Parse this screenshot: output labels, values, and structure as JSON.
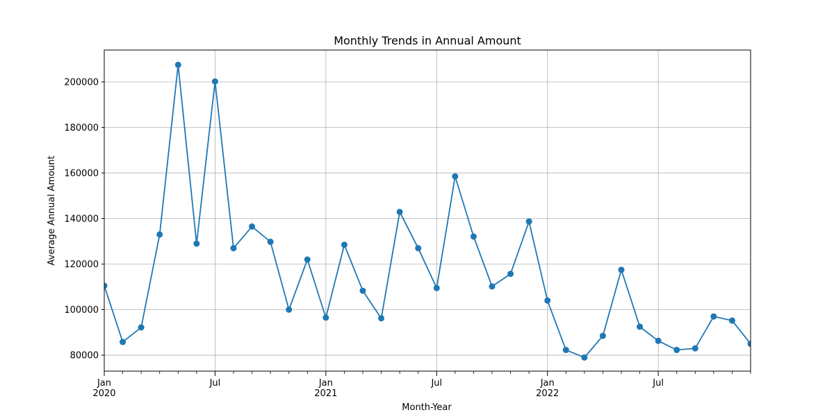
{
  "chart_data": {
    "type": "line",
    "title": "Monthly Trends in Annual Amount",
    "xlabel": "Month-Year",
    "ylabel": "Average Annual Amount",
    "x": [
      "2020-01",
      "2020-02",
      "2020-03",
      "2020-04",
      "2020-05",
      "2020-06",
      "2020-07",
      "2020-08",
      "2020-09",
      "2020-10",
      "2020-11",
      "2020-12",
      "2021-01",
      "2021-02",
      "2021-03",
      "2021-04",
      "2021-05",
      "2021-06",
      "2021-07",
      "2021-08",
      "2021-09",
      "2021-10",
      "2021-11",
      "2021-12",
      "2022-01",
      "2022-02",
      "2022-03",
      "2022-04",
      "2022-05",
      "2022-06",
      "2022-07",
      "2022-08",
      "2022-09",
      "2022-10",
      "2022-11",
      "2022-12"
    ],
    "series": [
      {
        "color": "#1f77b4",
        "marker": "circle",
        "values": [
          110500,
          85800,
          92200,
          133000,
          207500,
          129000,
          200200,
          127000,
          136500,
          129800,
          100000,
          122000,
          96500,
          128500,
          108300,
          96200,
          142900,
          127000,
          109500,
          158500,
          132100,
          110200,
          115700,
          138700,
          104000,
          82300,
          79000,
          88500,
          117500,
          92500,
          86300,
          82300,
          83000,
          97000,
          95200,
          85000
        ]
      }
    ],
    "xlim": [
      "2020-01",
      "2022-12"
    ],
    "ylim": [
      73000,
      214000
    ],
    "yticks": [
      80000,
      100000,
      120000,
      140000,
      160000,
      180000,
      200000
    ],
    "ytick_labels": [
      "80000",
      "100000",
      "120000",
      "140000",
      "160000",
      "180000",
      "200000"
    ],
    "xticks": [
      {
        "x": "2020-01",
        "label": "Jan",
        "year": "2020"
      },
      {
        "x": "2020-07",
        "label": "Jul",
        "year": ""
      },
      {
        "x": "2021-01",
        "label": "Jan",
        "year": "2021"
      },
      {
        "x": "2021-07",
        "label": "Jul",
        "year": ""
      },
      {
        "x": "2022-01",
        "label": "Jan",
        "year": "2022"
      },
      {
        "x": "2022-07",
        "label": "Jul",
        "year": ""
      }
    ],
    "grid": true,
    "colors": {
      "line": "#1f77b4",
      "grid": "#b0b0b0",
      "axes": "#000000"
    }
  }
}
